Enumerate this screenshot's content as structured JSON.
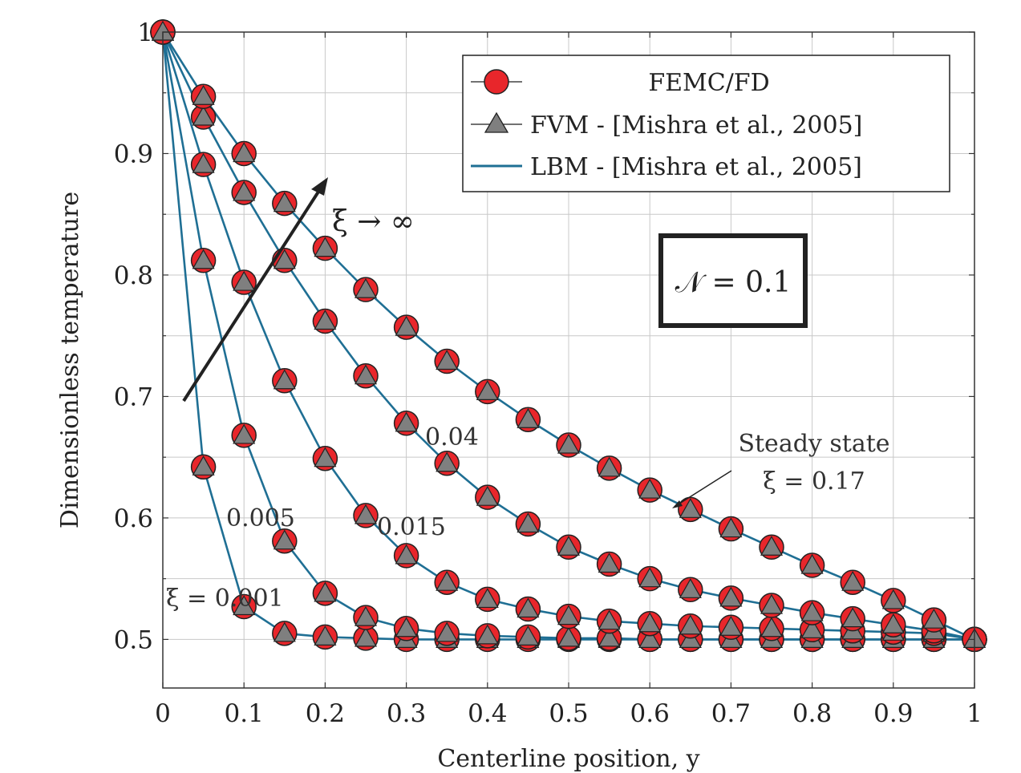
{
  "chart_data": {
    "type": "line",
    "title": "",
    "xlabel": "Centerline position, y",
    "ylabel": "Dimensionless temperature",
    "xlim": [
      0,
      1
    ],
    "ylim": [
      0.46,
      1.0
    ],
    "grid": true,
    "legend_position": "top-right",
    "x_ticks": [
      "0",
      "0.1",
      "0.2",
      "0.3",
      "0.4",
      "0.5",
      "0.6",
      "0.7",
      "0.8",
      "0.9",
      "1"
    ],
    "y_ticks": [
      "0.5",
      "0.6",
      "0.7",
      "0.8",
      "0.9",
      "1"
    ],
    "legend": [
      {
        "label": "FEMC/FD",
        "marker": "circle",
        "color": "#e8262b"
      },
      {
        "label": "FVM - [Mishra et al., 2005]",
        "marker": "triangle",
        "color": "#7f7f7f"
      },
      {
        "label": "LBM - [Mishra et al., 2005]",
        "marker": "line",
        "color": "#1f6f94"
      }
    ],
    "x": [
      0,
      0.05,
      0.1,
      0.15,
      0.2,
      0.25,
      0.3,
      0.35,
      0.4,
      0.45,
      0.5,
      0.55,
      0.6,
      0.65,
      0.7,
      0.75,
      0.8,
      0.85,
      0.9,
      0.95,
      1.0
    ],
    "series": [
      {
        "name": "ξ = 0.001",
        "values": [
          1.0,
          0.642,
          0.527,
          0.505,
          0.502,
          0.501,
          0.5,
          0.5,
          0.5,
          0.5,
          0.5,
          0.5,
          0.5,
          0.5,
          0.5,
          0.5,
          0.5,
          0.5,
          0.5,
          0.5,
          0.5
        ]
      },
      {
        "name": "0.005",
        "values": [
          1.0,
          0.812,
          0.668,
          0.581,
          0.538,
          0.518,
          0.509,
          0.505,
          0.503,
          0.502,
          0.501,
          0.501,
          0.5,
          0.5,
          0.5,
          0.5,
          0.5,
          0.5,
          0.5,
          0.5,
          0.5
        ]
      },
      {
        "name": "0.015",
        "values": [
          1.0,
          0.891,
          0.794,
          0.713,
          0.649,
          0.602,
          0.569,
          0.547,
          0.533,
          0.525,
          0.519,
          0.515,
          0.513,
          0.511,
          0.51,
          0.509,
          0.508,
          0.507,
          0.506,
          0.505,
          0.5
        ]
      },
      {
        "name": "0.04",
        "values": [
          1.0,
          0.93,
          0.868,
          0.812,
          0.762,
          0.717,
          0.678,
          0.645,
          0.617,
          0.595,
          0.576,
          0.562,
          0.55,
          0.541,
          0.534,
          0.528,
          0.522,
          0.517,
          0.512,
          0.507,
          0.5
        ]
      },
      {
        "name": "Steady state ξ = 0.17",
        "values": [
          1.0,
          0.947,
          0.9,
          0.859,
          0.822,
          0.788,
          0.757,
          0.729,
          0.704,
          0.681,
          0.66,
          0.641,
          0.623,
          0.607,
          0.591,
          0.576,
          0.561,
          0.547,
          0.532,
          0.516,
          0.5
        ]
      }
    ],
    "annotations": [
      {
        "text": "ξ = 0.001"
      },
      {
        "text": "0.005"
      },
      {
        "text": "0.015"
      },
      {
        "text": "0.04"
      },
      {
        "text": "Steady state"
      },
      {
        "text": "ξ = 0.17"
      },
      {
        "text": "ξ → ∞"
      },
      {
        "text": "𝒩 = 0.1"
      }
    ]
  }
}
